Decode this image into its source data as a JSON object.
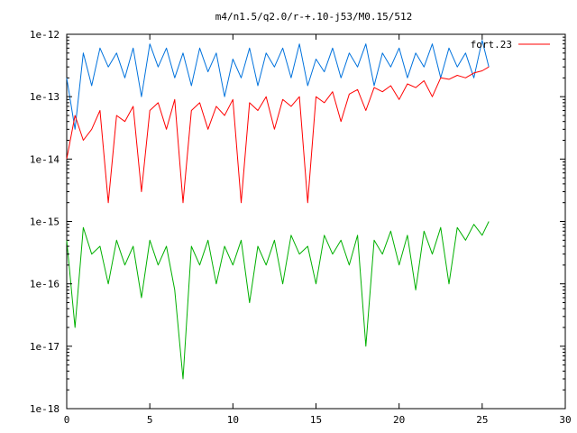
{
  "chart_data": {
    "type": "line",
    "title": "m4/n1.5/q2.0/r-+.10-j53/M0.15/512",
    "xlabel": "",
    "ylabel": "",
    "xlim": [
      0,
      30
    ],
    "ylim": [
      1e-18,
      1e-12
    ],
    "y_scale": "log",
    "grid": false,
    "legend_position": "top-right",
    "x_ticks": [
      "0",
      "5",
      "10",
      "15",
      "20",
      "25",
      "30"
    ],
    "y_ticks": [
      "1e-12",
      "1e-13",
      "1e-14",
      "1e-15",
      "1e-16",
      "1e-17",
      "1e-18"
    ],
    "series": [
      {
        "name": "",
        "color": "#0072dd",
        "x": [
          0,
          0.5,
          1,
          1.5,
          2,
          2.5,
          3,
          3.5,
          4,
          4.5,
          5,
          5.5,
          6,
          6.5,
          7,
          7.5,
          8,
          8.5,
          9,
          9.5,
          10,
          10.5,
          11,
          11.5,
          12,
          12.5,
          13,
          13.5,
          14,
          14.5,
          15,
          15.5,
          16,
          16.5,
          17,
          17.5,
          18,
          18.5,
          19,
          19.5,
          20,
          20.5,
          21,
          21.5,
          22,
          22.5,
          23,
          23.5,
          24,
          24.5,
          25,
          25.4
        ],
        "y": [
          2e-13,
          3e-14,
          5e-13,
          1.5e-13,
          6e-13,
          3e-13,
          5e-13,
          2e-13,
          6e-13,
          1e-13,
          7e-13,
          3e-13,
          6e-13,
          2e-13,
          5e-13,
          1.5e-13,
          6e-13,
          2.5e-13,
          5e-13,
          1e-13,
          4e-13,
          2e-13,
          6e-13,
          1.5e-13,
          5e-13,
          3e-13,
          6e-13,
          2e-13,
          7e-13,
          1.5e-13,
          4e-13,
          2.5e-13,
          6e-13,
          2e-13,
          5e-13,
          3e-13,
          7e-13,
          1.5e-13,
          5e-13,
          3e-13,
          6e-13,
          2e-13,
          5e-13,
          3e-13,
          7e-13,
          2e-13,
          6e-13,
          3e-13,
          5e-13,
          2e-13,
          8e-13,
          3e-13
        ]
      },
      {
        "name": "fort.23",
        "color": "#ff0000",
        "x": [
          0,
          0.5,
          1,
          1.5,
          2,
          2.5,
          3,
          3.5,
          4,
          4.5,
          5,
          5.5,
          6,
          6.5,
          7,
          7.5,
          8,
          8.5,
          9,
          9.5,
          10,
          10.5,
          11,
          11.5,
          12,
          12.5,
          13,
          13.5,
          14,
          14.5,
          15,
          15.5,
          16,
          16.5,
          17,
          17.5,
          18,
          18.5,
          19,
          19.5,
          20,
          20.5,
          21,
          21.5,
          22,
          22.5,
          23,
          23.5,
          24,
          24.5,
          25,
          25.4
        ],
        "y": [
          1e-14,
          5e-14,
          2e-14,
          3e-14,
          6e-14,
          2e-15,
          5e-14,
          4e-14,
          7e-14,
          3e-15,
          6e-14,
          8e-14,
          3e-14,
          9e-14,
          2e-15,
          6e-14,
          8e-14,
          3e-14,
          7e-14,
          5e-14,
          9e-14,
          2e-15,
          8e-14,
          6e-14,
          1e-13,
          3e-14,
          9e-14,
          7e-14,
          1e-13,
          2e-15,
          1e-13,
          8e-14,
          1.2e-13,
          4e-14,
          1.1e-13,
          1.3e-13,
          6e-14,
          1.4e-13,
          1.2e-13,
          1.5e-13,
          9e-14,
          1.6e-13,
          1.4e-13,
          1.8e-13,
          1e-13,
          2e-13,
          1.9e-13,
          2.2e-13,
          2e-13,
          2.4e-13,
          2.6e-13,
          3e-13
        ]
      },
      {
        "name": "",
        "color": "#00b000",
        "x": [
          0,
          0.5,
          1,
          1.5,
          2,
          2.5,
          3,
          3.5,
          4,
          4.5,
          5,
          5.5,
          6,
          6.5,
          7,
          7.5,
          8,
          8.5,
          9,
          9.5,
          10,
          10.5,
          11,
          11.5,
          12,
          12.5,
          13,
          13.5,
          14,
          14.5,
          15,
          15.5,
          16,
          16.5,
          17,
          17.5,
          18,
          18.5,
          19,
          19.5,
          20,
          20.5,
          21,
          21.5,
          22,
          22.5,
          23,
          23.5,
          24,
          24.5,
          25,
          25.4
        ],
        "y": [
          5e-16,
          2e-17,
          8e-16,
          3e-16,
          4e-16,
          1e-16,
          5e-16,
          2e-16,
          4e-16,
          6e-17,
          5e-16,
          2e-16,
          4e-16,
          8e-17,
          3e-18,
          4e-16,
          2e-16,
          5e-16,
          1e-16,
          4e-16,
          2e-16,
          5e-16,
          5e-17,
          4e-16,
          2e-16,
          5e-16,
          1e-16,
          6e-16,
          3e-16,
          4e-16,
          1e-16,
          6e-16,
          3e-16,
          5e-16,
          2e-16,
          6e-16,
          1e-17,
          5e-16,
          3e-16,
          7e-16,
          2e-16,
          6e-16,
          8e-17,
          7e-16,
          3e-16,
          8e-16,
          1e-16,
          8e-16,
          5e-16,
          9e-16,
          6e-16,
          1e-15
        ]
      }
    ]
  }
}
